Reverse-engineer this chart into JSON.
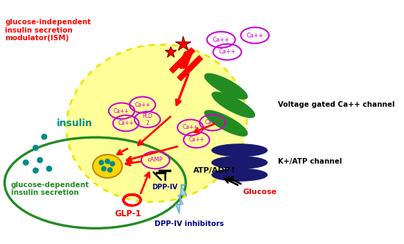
{
  "bg_color": "#ffffff",
  "cell_color": "#ffff99",
  "cell_border_color": "#e6e600",
  "green_oval_color": "#228B22",
  "blue_oval_color": "#191970",
  "ca_border_color": "#cc00cc",
  "insulin_dot_color": "#008b8b",
  "outer_ellipse_color": "#228B22",
  "labels": {
    "ISM": "glucose-independent\ninsulin secretion\nmodulator(ISM)",
    "voltage": "Voltage gated Ca++ channel",
    "katp": "K+/ATP channel",
    "insulin": "insulin",
    "glucose_dep": "glucose-dependent\ninsulin secretion",
    "glp1": "GLP-1",
    "dppiv": "DPP-IV",
    "dppiv_inh": "DPP-IV inhibitors",
    "camp": "cAMP",
    "glucose": "Glucose",
    "atpadp": "ATP/ADP"
  }
}
